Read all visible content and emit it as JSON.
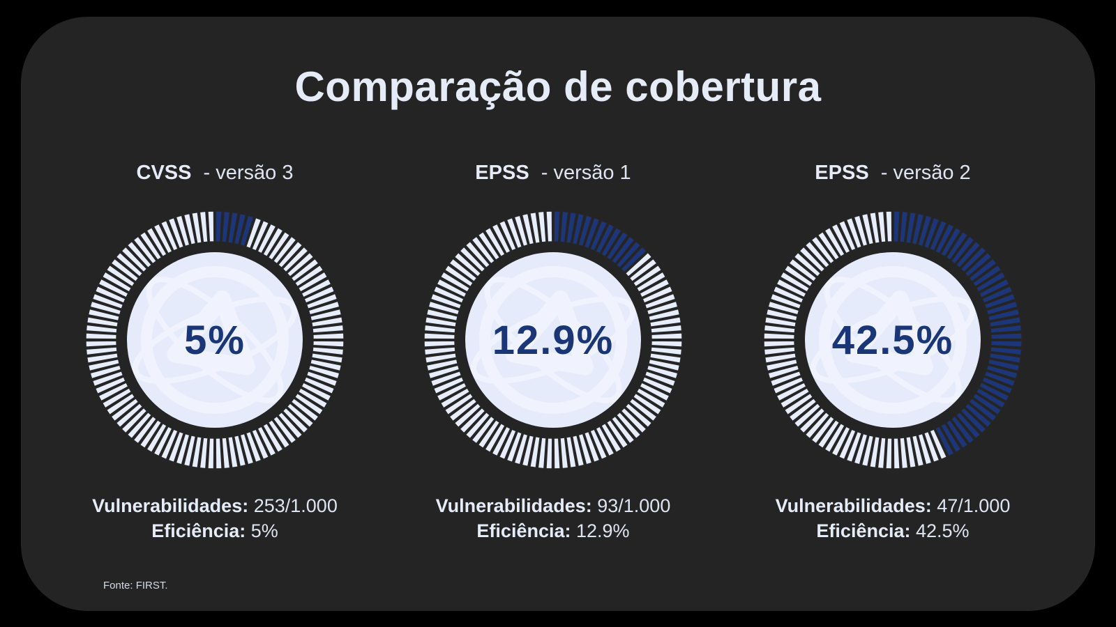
{
  "title": "Comparação de cobertura",
  "colors": {
    "page_bg": "#000000",
    "panel_bg": "#242424",
    "text_light": "#E6EBF8",
    "segment_filled": "#1C3679",
    "segment_empty": "#E8EDFB",
    "segment_outline": "#262626",
    "circle_fill": "#E5EBFA",
    "watermark": "#F2F5FE",
    "percent_navy": "#1B3676"
  },
  "chart_data": [
    {
      "type": "gauge",
      "title_bold": "CVSS",
      "title_rest": "- versão 3",
      "percent": 5,
      "percent_label": "5%",
      "segments_total": 100,
      "segments_filled": 5,
      "vulnerabilities_label": "Vulnerabilidades:",
      "vulnerabilities_value": "253/1.000",
      "efficiency_label": "Eficiência:",
      "efficiency_value": "5%"
    },
    {
      "type": "gauge",
      "title_bold": "EPSS",
      "title_rest": "- versão 1",
      "percent": 12.9,
      "percent_label": "12.9%",
      "segments_total": 100,
      "segments_filled": 13,
      "vulnerabilities_label": "Vulnerabilidades:",
      "vulnerabilities_value": "93/1.000",
      "efficiency_label": "Eficiência:",
      "efficiency_value": "12.9%"
    },
    {
      "type": "gauge",
      "title_bold": "EPSS",
      "title_rest": "- versão 2",
      "percent": 42.5,
      "percent_label": "42.5%",
      "segments_total": 100,
      "segments_filled": 43,
      "vulnerabilities_label": "Vulnerabilidades:",
      "vulnerabilities_value": "47/1.000",
      "efficiency_label": "Eficiência:",
      "efficiency_value": "42.5%"
    }
  ],
  "footer": {
    "source_label": "Fonte: FIRST."
  }
}
